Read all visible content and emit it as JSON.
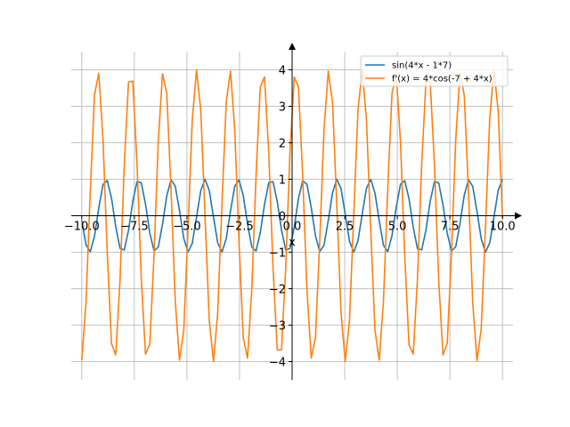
{
  "chart_data": {
    "type": "line",
    "title": "",
    "xlabel": "x",
    "ylabel": "",
    "xlim": [
      -10.5,
      10.5
    ],
    "ylim": [
      -4.5,
      4.5
    ],
    "grid": true,
    "legend_position": "top-right",
    "x_ticks": [
      -10.0,
      -7.5,
      -5.0,
      -2.5,
      0.0,
      2.5,
      5.0,
      7.5,
      10.0
    ],
    "x_tick_labels": [
      "−10.0",
      "−7.5",
      "−5.0",
      "−2.5",
      "0.0",
      "2.5",
      "5.0",
      "7.5",
      "10.0"
    ],
    "y_ticks": [
      -4,
      -3,
      -2,
      -1,
      0,
      1,
      2,
      3,
      4
    ],
    "y_tick_labels": [
      "−4",
      "−3",
      "−2",
      "−1",
      "0",
      "1",
      "2",
      "3",
      "4"
    ],
    "x_range": [
      -10,
      10
    ],
    "sample_points": 100,
    "series": [
      {
        "name": "sin(4*x - 1*7)",
        "expression": "sin(4*x - 7)",
        "color": "#1f77b4"
      },
      {
        "name": "f'(x) = 4*cos(-7 + 4*x)",
        "expression": "4*cos(-7 + 4*x)",
        "color": "#ff7f0e"
      }
    ]
  }
}
